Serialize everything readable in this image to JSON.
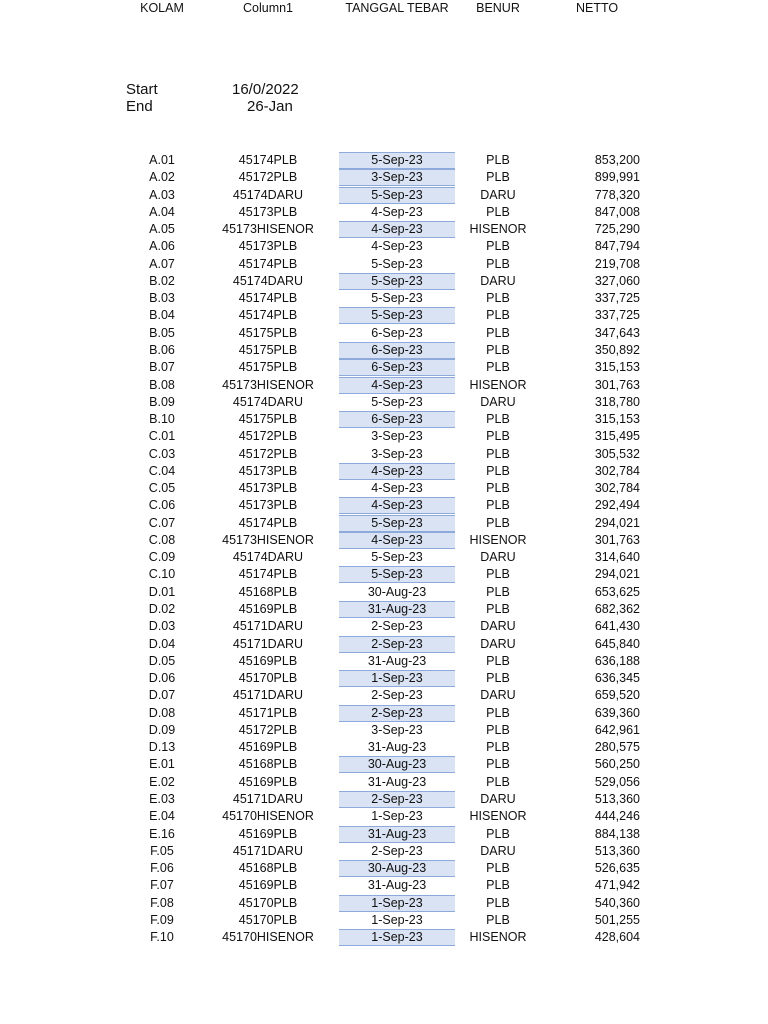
{
  "meta": {
    "start_label": "Start",
    "start_value": "16/0/2022",
    "end_label": "End",
    "end_value": "26-Jan"
  },
  "headers": {
    "kolam": "KOLAM",
    "column1": "Column1",
    "tanggal": "TANGGAL TEBAR",
    "benur": "BENUR",
    "netto": "NETTO"
  },
  "colors": {
    "highlight_fill": "#dae3f3",
    "highlight_border": "#8eaadb"
  },
  "rows": [
    {
      "kolam": "A.01",
      "column1": "45174PLB",
      "tanggal": "5-Sep-23",
      "benur": "PLB",
      "netto": "853,200",
      "highlighted": true
    },
    {
      "kolam": "A.02",
      "column1": "45172PLB",
      "tanggal": "3-Sep-23",
      "benur": "PLB",
      "netto": "899,991",
      "highlighted": true
    },
    {
      "kolam": "A.03",
      "column1": "45174DARU",
      "tanggal": "5-Sep-23",
      "benur": "DARU",
      "netto": "778,320",
      "highlighted": true
    },
    {
      "kolam": "A.04",
      "column1": "45173PLB",
      "tanggal": "4-Sep-23",
      "benur": "PLB",
      "netto": "847,008",
      "highlighted": false
    },
    {
      "kolam": "A.05",
      "column1": "45173HISENOR",
      "tanggal": "4-Sep-23",
      "benur": "HISENOR",
      "netto": "725,290",
      "highlighted": true
    },
    {
      "kolam": "A.06",
      "column1": "45173PLB",
      "tanggal": "4-Sep-23",
      "benur": "PLB",
      "netto": "847,794",
      "highlighted": false
    },
    {
      "kolam": "A.07",
      "column1": "45174PLB",
      "tanggal": "5-Sep-23",
      "benur": "PLB",
      "netto": "219,708",
      "highlighted": false
    },
    {
      "kolam": "B.02",
      "column1": "45174DARU",
      "tanggal": "5-Sep-23",
      "benur": "DARU",
      "netto": "327,060",
      "highlighted": true
    },
    {
      "kolam": "B.03",
      "column1": "45174PLB",
      "tanggal": "5-Sep-23",
      "benur": "PLB",
      "netto": "337,725",
      "highlighted": false
    },
    {
      "kolam": "B.04",
      "column1": "45174PLB",
      "tanggal": "5-Sep-23",
      "benur": "PLB",
      "netto": "337,725",
      "highlighted": true
    },
    {
      "kolam": "B.05",
      "column1": "45175PLB",
      "tanggal": "6-Sep-23",
      "benur": "PLB",
      "netto": "347,643",
      "highlighted": false
    },
    {
      "kolam": "B.06",
      "column1": "45175PLB",
      "tanggal": "6-Sep-23",
      "benur": "PLB",
      "netto": "350,892",
      "highlighted": true
    },
    {
      "kolam": "B.07",
      "column1": "45175PLB",
      "tanggal": "6-Sep-23",
      "benur": "PLB",
      "netto": "315,153",
      "highlighted": true
    },
    {
      "kolam": "B.08",
      "column1": "45173HISENOR",
      "tanggal": "4-Sep-23",
      "benur": "HISENOR",
      "netto": "301,763",
      "highlighted": true
    },
    {
      "kolam": "B.09",
      "column1": "45174DARU",
      "tanggal": "5-Sep-23",
      "benur": "DARU",
      "netto": "318,780",
      "highlighted": false
    },
    {
      "kolam": "B.10",
      "column1": "45175PLB",
      "tanggal": "6-Sep-23",
      "benur": "PLB",
      "netto": "315,153",
      "highlighted": true
    },
    {
      "kolam": "C.01",
      "column1": "45172PLB",
      "tanggal": "3-Sep-23",
      "benur": "PLB",
      "netto": "315,495",
      "highlighted": false
    },
    {
      "kolam": "C.03",
      "column1": "45172PLB",
      "tanggal": "3-Sep-23",
      "benur": "PLB",
      "netto": "305,532",
      "highlighted": false
    },
    {
      "kolam": "C.04",
      "column1": "45173PLB",
      "tanggal": "4-Sep-23",
      "benur": "PLB",
      "netto": "302,784",
      "highlighted": true
    },
    {
      "kolam": "C.05",
      "column1": "45173PLB",
      "tanggal": "4-Sep-23",
      "benur": "PLB",
      "netto": "302,784",
      "highlighted": false
    },
    {
      "kolam": "C.06",
      "column1": "45173PLB",
      "tanggal": "4-Sep-23",
      "benur": "PLB",
      "netto": "292,494",
      "highlighted": true
    },
    {
      "kolam": "C.07",
      "column1": "45174PLB",
      "tanggal": "5-Sep-23",
      "benur": "PLB",
      "netto": "294,021",
      "highlighted": true
    },
    {
      "kolam": "C.08",
      "column1": "45173HISENOR",
      "tanggal": "4-Sep-23",
      "benur": "HISENOR",
      "netto": "301,763",
      "highlighted": true
    },
    {
      "kolam": "C.09",
      "column1": "45174DARU",
      "tanggal": "5-Sep-23",
      "benur": "DARU",
      "netto": "314,640",
      "highlighted": false
    },
    {
      "kolam": "C.10",
      "column1": "45174PLB",
      "tanggal": "5-Sep-23",
      "benur": "PLB",
      "netto": "294,021",
      "highlighted": true
    },
    {
      "kolam": "D.01",
      "column1": "45168PLB",
      "tanggal": "30-Aug-23",
      "benur": "PLB",
      "netto": "653,625",
      "highlighted": false
    },
    {
      "kolam": "D.02",
      "column1": "45169PLB",
      "tanggal": "31-Aug-23",
      "benur": "PLB",
      "netto": "682,362",
      "highlighted": true
    },
    {
      "kolam": "D.03",
      "column1": "45171DARU",
      "tanggal": "2-Sep-23",
      "benur": "DARU",
      "netto": "641,430",
      "highlighted": false
    },
    {
      "kolam": "D.04",
      "column1": "45171DARU",
      "tanggal": "2-Sep-23",
      "benur": "DARU",
      "netto": "645,840",
      "highlighted": true
    },
    {
      "kolam": "D.05",
      "column1": "45169PLB",
      "tanggal": "31-Aug-23",
      "benur": "PLB",
      "netto": "636,188",
      "highlighted": false
    },
    {
      "kolam": "D.06",
      "column1": "45170PLB",
      "tanggal": "1-Sep-23",
      "benur": "PLB",
      "netto": "636,345",
      "highlighted": true
    },
    {
      "kolam": "D.07",
      "column1": "45171DARU",
      "tanggal": "2-Sep-23",
      "benur": "DARU",
      "netto": "659,520",
      "highlighted": false
    },
    {
      "kolam": "D.08",
      "column1": "45171PLB",
      "tanggal": "2-Sep-23",
      "benur": "PLB",
      "netto": "639,360",
      "highlighted": true
    },
    {
      "kolam": "D.09",
      "column1": "45172PLB",
      "tanggal": "3-Sep-23",
      "benur": "PLB",
      "netto": "642,961",
      "highlighted": false
    },
    {
      "kolam": "D.13",
      "column1": "45169PLB",
      "tanggal": "31-Aug-23",
      "benur": "PLB",
      "netto": "280,575",
      "highlighted": false
    },
    {
      "kolam": "E.01",
      "column1": "45168PLB",
      "tanggal": "30-Aug-23",
      "benur": "PLB",
      "netto": "560,250",
      "highlighted": true
    },
    {
      "kolam": "E.02",
      "column1": "45169PLB",
      "tanggal": "31-Aug-23",
      "benur": "PLB",
      "netto": "529,056",
      "highlighted": false
    },
    {
      "kolam": "E.03",
      "column1": "45171DARU",
      "tanggal": "2-Sep-23",
      "benur": "DARU",
      "netto": "513,360",
      "highlighted": true
    },
    {
      "kolam": "E.04",
      "column1": "45170HISENOR",
      "tanggal": "1-Sep-23",
      "benur": "HISENOR",
      "netto": "444,246",
      "highlighted": false
    },
    {
      "kolam": "E.16",
      "column1": "45169PLB",
      "tanggal": "31-Aug-23",
      "benur": "PLB",
      "netto": "884,138",
      "highlighted": true
    },
    {
      "kolam": "F.05",
      "column1": "45171DARU",
      "tanggal": "2-Sep-23",
      "benur": "DARU",
      "netto": "513,360",
      "highlighted": false
    },
    {
      "kolam": "F.06",
      "column1": "45168PLB",
      "tanggal": "30-Aug-23",
      "benur": "PLB",
      "netto": "526,635",
      "highlighted": true
    },
    {
      "kolam": "F.07",
      "column1": "45169PLB",
      "tanggal": "31-Aug-23",
      "benur": "PLB",
      "netto": "471,942",
      "highlighted": false
    },
    {
      "kolam": "F.08",
      "column1": "45170PLB",
      "tanggal": "1-Sep-23",
      "benur": "PLB",
      "netto": "540,360",
      "highlighted": true
    },
    {
      "kolam": "F.09",
      "column1": "45170PLB",
      "tanggal": "1-Sep-23",
      "benur": "PLB",
      "netto": "501,255",
      "highlighted": false
    },
    {
      "kolam": "F.10",
      "column1": "45170HISENOR",
      "tanggal": "1-Sep-23",
      "benur": "HISENOR",
      "netto": "428,604",
      "highlighted": true
    }
  ]
}
